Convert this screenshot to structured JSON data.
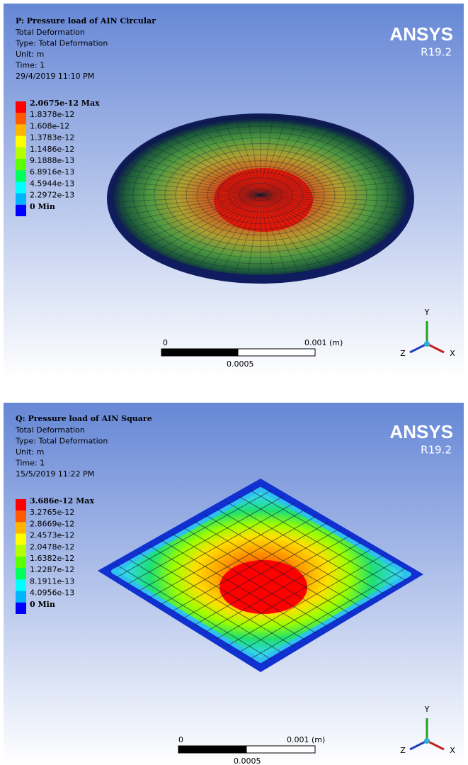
{
  "panels": [
    {
      "title": "P: Pressure load of AIN Circular",
      "lines": [
        "Total Deformation",
        "Type: Total Deformation",
        "Unit: m",
        "Time: 1",
        "29/4/2019 11:10 PM"
      ],
      "legend": [
        "2.0675e-12 Max",
        "1.8378e-12",
        "1.608e-12",
        "1.3783e-12",
        "1.1486e-12",
        "9.1888e-13",
        "6.8916e-13",
        "4.5944e-13",
        "2.2972e-13",
        "0 Min"
      ],
      "logo": "ANSYS",
      "version": "R19.2",
      "scale": [
        "0",
        "0.001 (m)",
        "0.0005"
      ],
      "axes": [
        "Y",
        "Z",
        "X"
      ]
    },
    {
      "title": "Q: Pressure load of AIN Square",
      "lines": [
        "Total Deformation",
        "Type: Total Deformation",
        "Unit: m",
        "Time: 1",
        "15/5/2019 11:22 PM"
      ],
      "legend": [
        "3.686e-12 Max",
        "3.2765e-12",
        "2.8669e-12",
        "2.4573e-12",
        "2.0478e-12",
        "1.6382e-12",
        "1.2287e-12",
        "8.1911e-13",
        "4.0956e-13",
        "0 Min"
      ],
      "logo": "ANSYS",
      "version": "R19.2",
      "scale": [
        "0",
        "0.001 (m)",
        "0.0005"
      ],
      "axes": [
        "Y",
        "Z",
        "X"
      ]
    }
  ]
}
